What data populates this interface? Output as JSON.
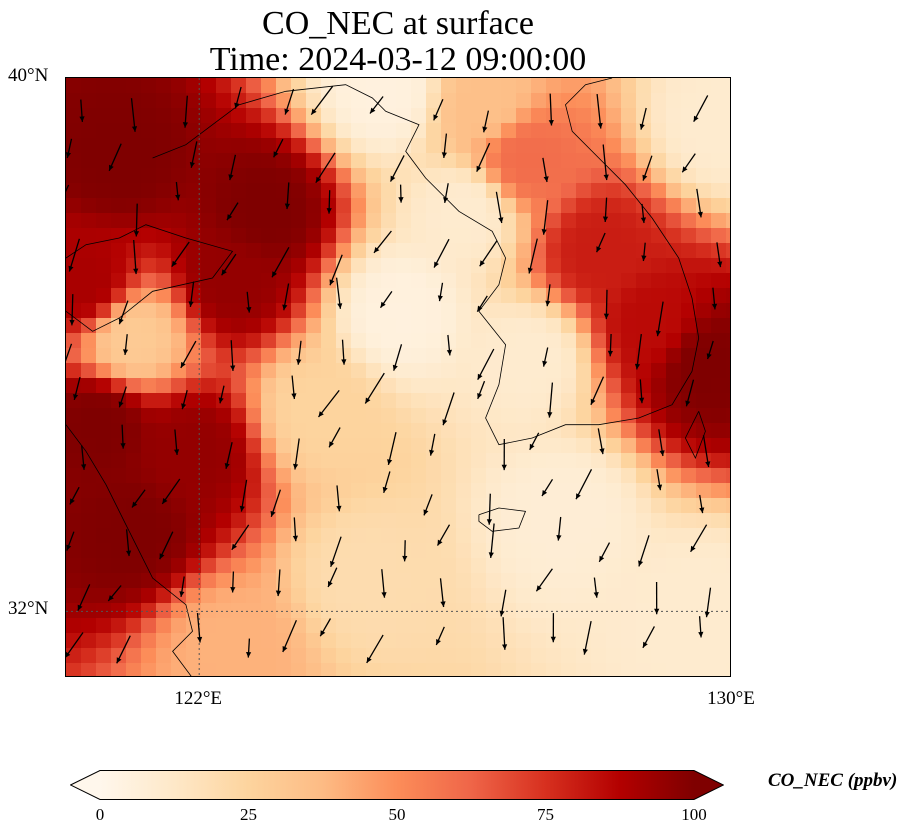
{
  "title": {
    "line1": "CO_NEC at surface",
    "line2": "Time: 2024-03-12 09:00:00"
  },
  "map": {
    "extent": {
      "lon_min": 120,
      "lon_max": 130,
      "lat_min": 31,
      "lat_max": 40
    },
    "lat_ticks": [
      {
        "value": 40,
        "label": "40°N"
      },
      {
        "value": 32,
        "label": "32°N"
      }
    ],
    "lon_ticks": [
      {
        "value": 122,
        "label": "122°E"
      },
      {
        "value": 130,
        "label": "130°E"
      }
    ],
    "gridlines": {
      "lon": [
        122
      ],
      "lat": [
        32
      ],
      "style": "dotted"
    },
    "field": {
      "variable": "CO_NEC",
      "units": "ppbv",
      "colormap": "OrRd",
      "high_regions": [
        {
          "lon": 120.8,
          "lat": 38.8,
          "value": 100
        },
        {
          "lon": 123.0,
          "lat": 38.0,
          "value": 100
        },
        {
          "lon": 121.0,
          "lat": 33.2,
          "value": 100
        },
        {
          "lon": 121.9,
          "lat": 34.4,
          "value": 95
        },
        {
          "lon": 120.3,
          "lat": 36.9,
          "value": 90
        },
        {
          "lon": 128.0,
          "lat": 37.4,
          "value": 80
        },
        {
          "lon": 129.6,
          "lat": 35.7,
          "value": 100
        },
        {
          "lon": 126.9,
          "lat": 38.8,
          "value": 60
        }
      ],
      "low_regions": [
        {
          "lon": 121.0,
          "lat": 36.1,
          "value": 30
        },
        {
          "lon": 125.0,
          "lat": 36.5,
          "value": 5
        },
        {
          "lon": 127.5,
          "lat": 33.5,
          "value": 8
        }
      ]
    },
    "wind_direction": "north-northwesterly"
  },
  "colorbar": {
    "min": 0,
    "max": 100,
    "ticks": [
      0,
      25,
      50,
      75,
      100
    ],
    "tick_labels": [
      "0",
      "25",
      "50",
      "75",
      "100"
    ],
    "label": "CO_NEC (ppbv)",
    "extend": "both",
    "stops": [
      "#fff7ec",
      "#fee8c8",
      "#fdd49e",
      "#fdbb84",
      "#fc8d59",
      "#ef6548",
      "#d7301f",
      "#b30000",
      "#7f0000"
    ]
  }
}
